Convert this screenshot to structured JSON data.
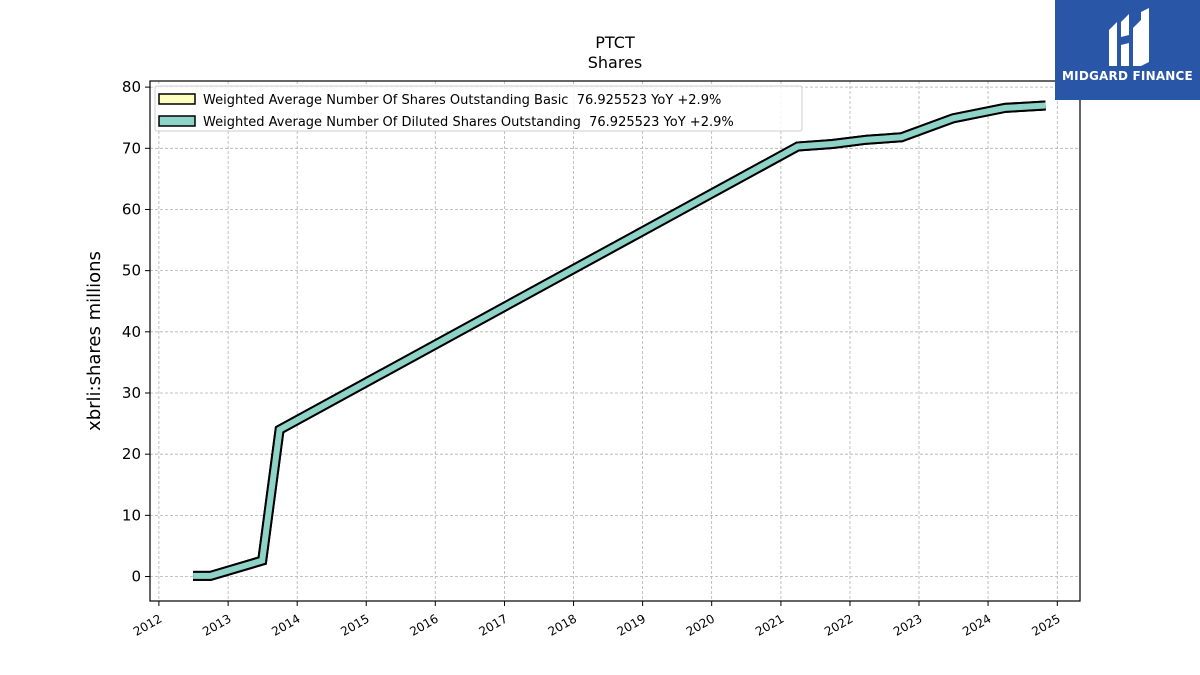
{
  "brand": {
    "name": "MIDGARD FINANCE",
    "icon": "midgard-logo-icon",
    "bg_color": "#2a56a8"
  },
  "chart_data": {
    "type": "line",
    "title": "PTCT",
    "subtitle": "Shares",
    "ylabel": "xbrli:shares millions",
    "xlabel": "",
    "xlim": [
      "2011-11-15",
      "2025-05-01"
    ],
    "ylim": [
      -4,
      81
    ],
    "x_ticks": [
      "2012",
      "2013",
      "2014",
      "2015",
      "2016",
      "2017",
      "2018",
      "2019",
      "2020",
      "2021",
      "2022",
      "2023",
      "2024",
      "2025"
    ],
    "y_ticks": [
      0,
      10,
      20,
      30,
      40,
      50,
      60,
      70,
      80
    ],
    "grid": true,
    "legend_position": "top-left",
    "series": [
      {
        "name": "Weighted Average Number Of Shares Outstanding Basic  76.925523 YoY +2.9%",
        "color": "#ffffc0",
        "points": [
          [
            "2012-06-30",
            0.1
          ],
          [
            "2012-09-30",
            0.1
          ],
          [
            "2013-06-30",
            2.6
          ],
          [
            "2013-09-30",
            24.0
          ],
          [
            "2021-03-31",
            70.3
          ],
          [
            "2021-09-30",
            70.7
          ],
          [
            "2022-03-31",
            71.4
          ],
          [
            "2022-09-30",
            71.8
          ],
          [
            "2023-06-30",
            74.9
          ],
          [
            "2024-03-31",
            76.6
          ],
          [
            "2024-10-31",
            77.0
          ]
        ]
      },
      {
        "name": "Weighted Average Number Of Diluted Shares Outstanding  76.925523 YoY +2.9%",
        "color": "#8dd3c7",
        "points": [
          [
            "2012-06-30",
            0.1
          ],
          [
            "2012-09-30",
            0.1
          ],
          [
            "2013-06-30",
            2.6
          ],
          [
            "2013-09-30",
            24.0
          ],
          [
            "2021-03-31",
            70.3
          ],
          [
            "2021-09-30",
            70.7
          ],
          [
            "2022-03-31",
            71.4
          ],
          [
            "2022-09-30",
            71.8
          ],
          [
            "2023-06-30",
            74.9
          ],
          [
            "2024-03-31",
            76.6
          ],
          [
            "2024-10-31",
            77.0
          ]
        ]
      }
    ]
  }
}
